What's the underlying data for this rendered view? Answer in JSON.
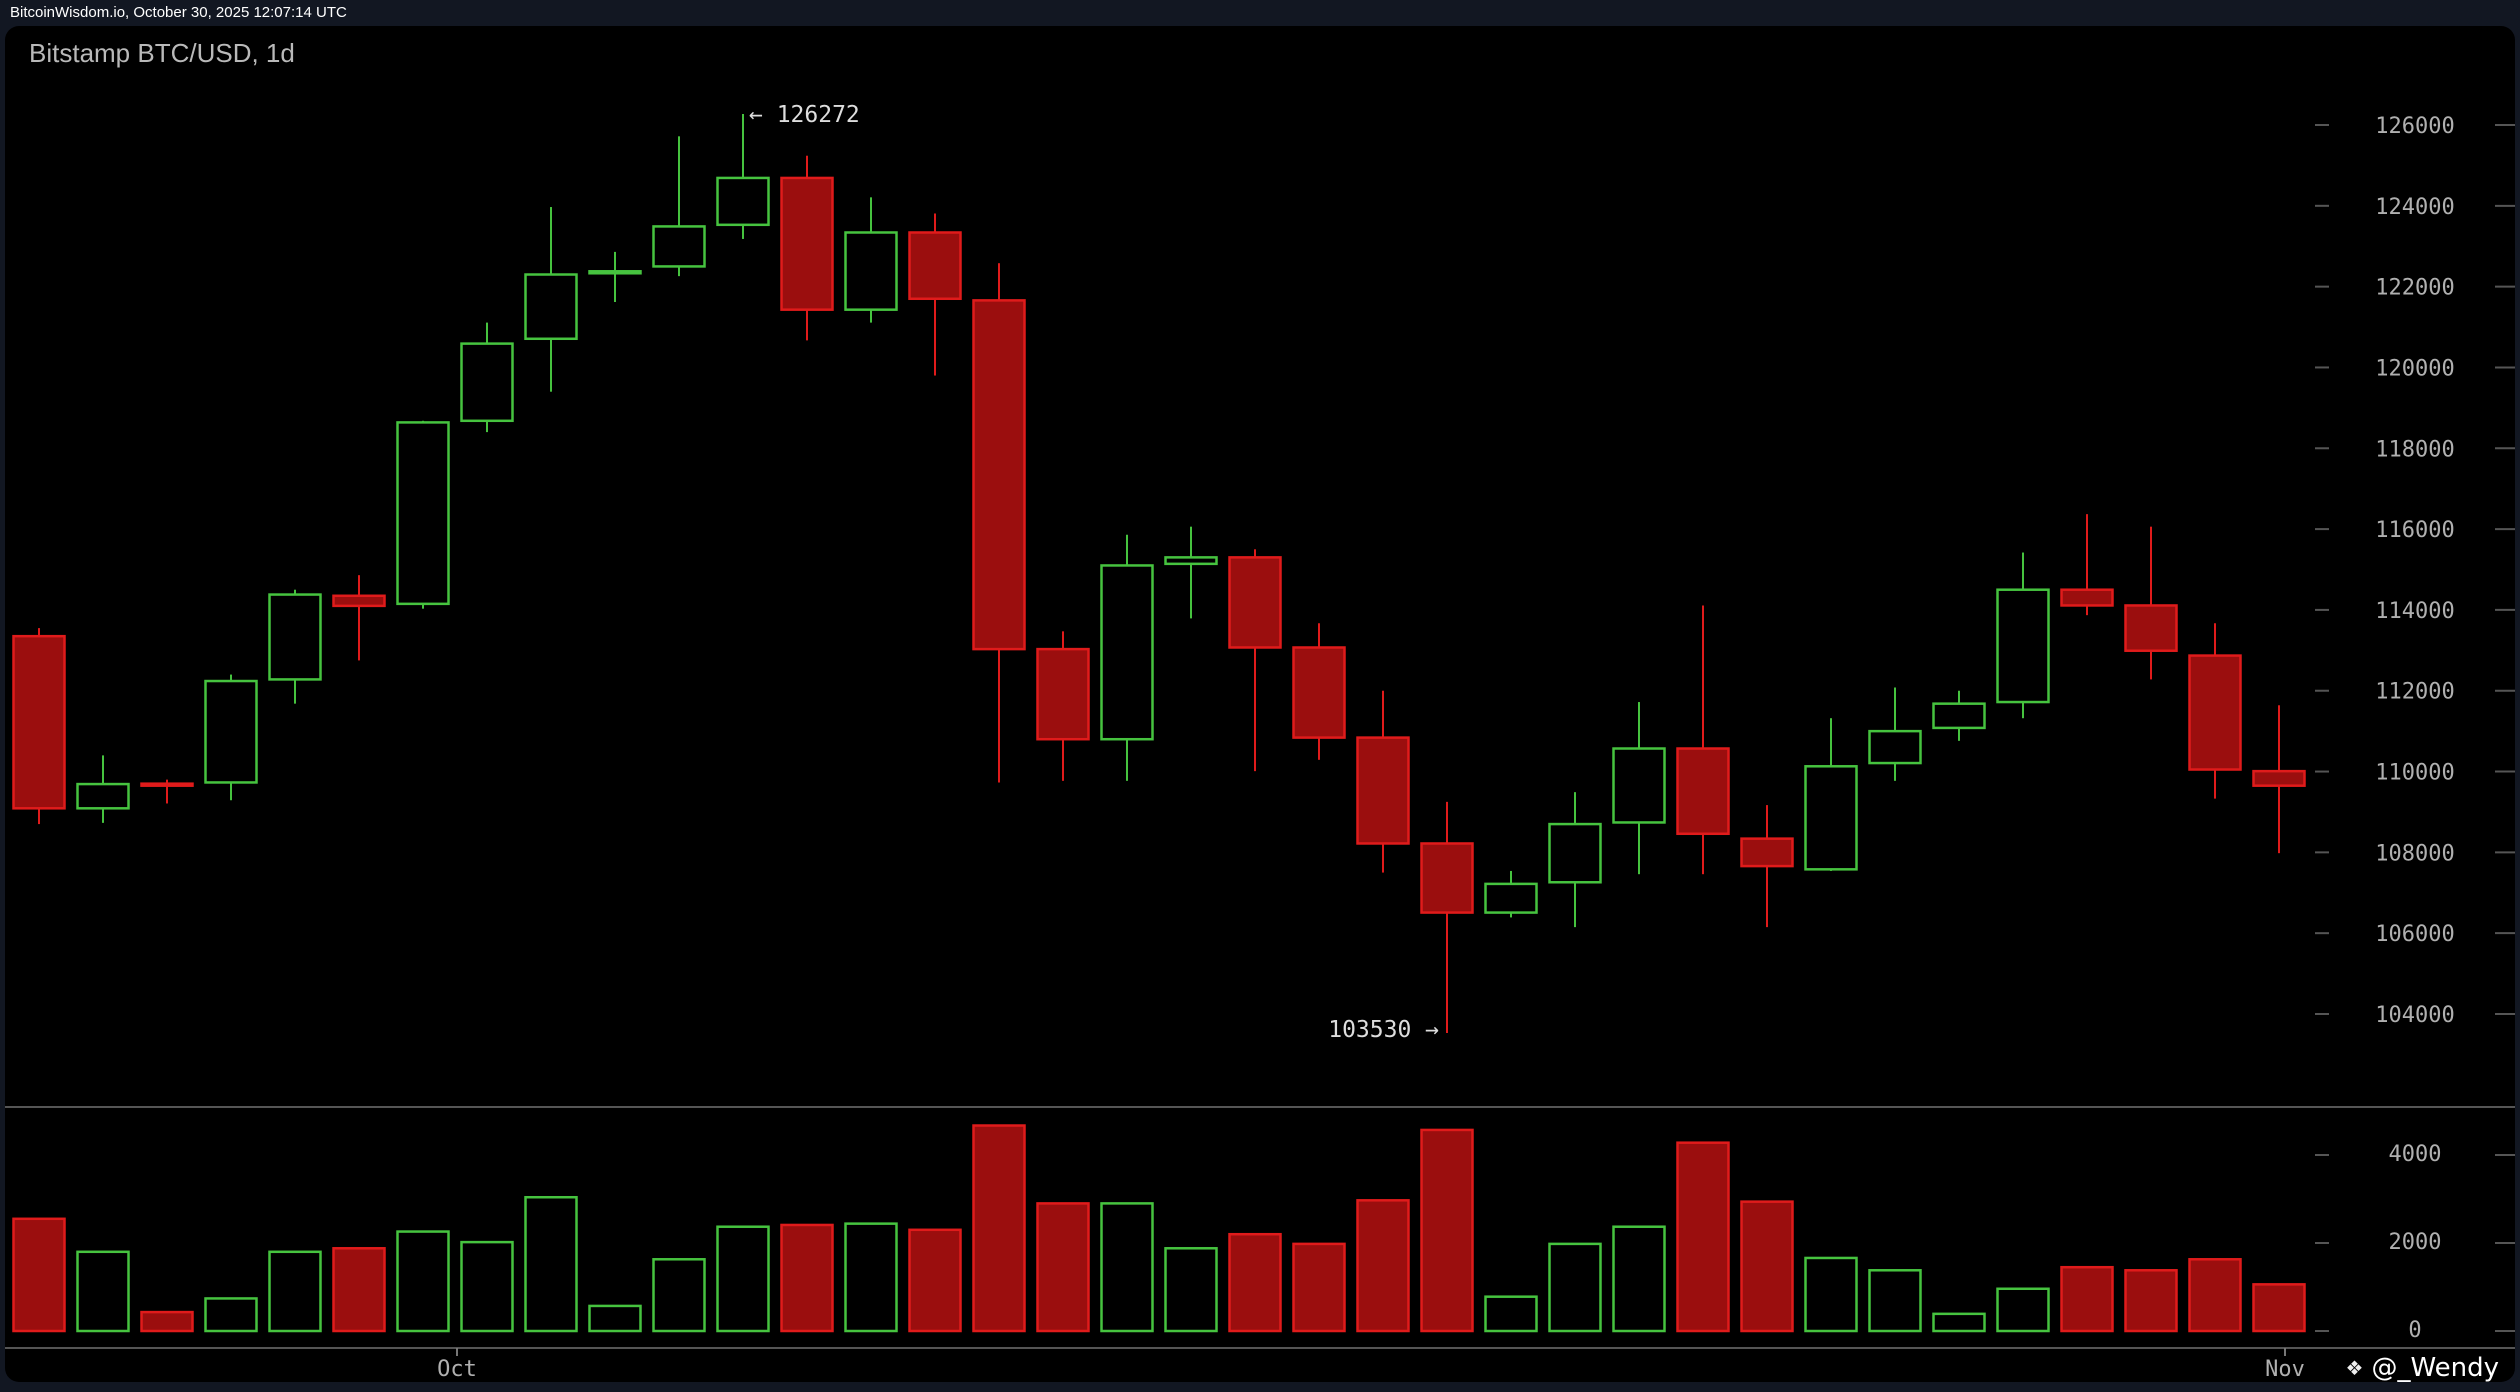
{
  "header": {
    "source_timestamp": "BitcoinWisdom.io, October 30, 2025 12:07:14 UTC"
  },
  "watermark": {
    "text": "@_Wendy",
    "icon": "binance-diamond-icon"
  },
  "colors": {
    "up": "#46c33f",
    "down": "#9b0e0e",
    "down_border": "#e01b1b",
    "background": "#000000",
    "axis_text": "#b0b0b0"
  },
  "chart_data": [
    {
      "type": "candlestick",
      "title": "Bitstamp BTC/USD, 1d",
      "ylim": [
        102500,
        127500
      ],
      "yticks": [
        104000,
        106000,
        108000,
        110000,
        112000,
        114000,
        116000,
        118000,
        120000,
        122000,
        124000,
        126000
      ],
      "xticks": [
        {
          "label": "Oct",
          "index": 7
        },
        {
          "label": "Nov",
          "index": 37
        }
      ],
      "annotations": [
        {
          "text": "← 126272",
          "index": 11,
          "value": 126272
        },
        {
          "text": "103530 →",
          "index": 22,
          "value": 103530
        }
      ],
      "ohlc": [
        [
          113350,
          113550,
          108700,
          109090
        ],
        [
          109090,
          110400,
          108730,
          109690
        ],
        [
          109700,
          109800,
          109210,
          109650
        ],
        [
          109730,
          112400,
          109290,
          112240
        ],
        [
          112280,
          114500,
          111680,
          114380
        ],
        [
          114350,
          114860,
          112750,
          114100
        ],
        [
          114150,
          118680,
          114030,
          118640
        ],
        [
          118680,
          121110,
          118400,
          120590
        ],
        [
          120710,
          123970,
          119400,
          122300
        ],
        [
          122340,
          122860,
          121620,
          122380
        ],
        [
          122500,
          125720,
          122260,
          123490
        ],
        [
          123530,
          126272,
          123180,
          124690
        ],
        [
          124690,
          125240,
          120670,
          121430
        ],
        [
          121430,
          124210,
          121110,
          123340
        ],
        [
          123340,
          123810,
          119800,
          121700
        ],
        [
          121660,
          122580,
          109730,
          113030
        ],
        [
          113030,
          113470,
          109770,
          110800
        ],
        [
          110800,
          115860,
          109770,
          115100
        ],
        [
          115140,
          116060,
          113790,
          115300
        ],
        [
          115300,
          115500,
          110010,
          113070
        ],
        [
          113070,
          113670,
          110290,
          110840
        ],
        [
          110840,
          112000,
          107500,
          108220
        ],
        [
          108220,
          109250,
          103530,
          106510
        ],
        [
          106510,
          107540,
          106390,
          107220
        ],
        [
          107260,
          109490,
          106150,
          108700
        ],
        [
          108740,
          111720,
          107460,
          110570
        ],
        [
          110570,
          114110,
          107460,
          108460
        ],
        [
          108340,
          109170,
          106150,
          107660
        ],
        [
          107580,
          111320,
          107540,
          110130
        ],
        [
          110210,
          112080,
          109770,
          111000
        ],
        [
          111080,
          112000,
          110760,
          111680
        ],
        [
          111720,
          115420,
          111320,
          114500
        ],
        [
          114500,
          116370,
          113870,
          114110
        ],
        [
          114110,
          116060,
          112280,
          112990
        ],
        [
          112870,
          113670,
          109330,
          110050
        ],
        [
          110010,
          111640,
          107980,
          109650
        ]
      ]
    },
    {
      "type": "bar",
      "ylabel": "",
      "ylim": [
        0,
        5000
      ],
      "yticks": [
        0,
        2000,
        4000
      ],
      "values": [
        2550,
        1800,
        430,
        740,
        1800,
        1880,
        2260,
        2020,
        3040,
        570,
        1630,
        2370,
        2410,
        2440,
        2300,
        4670,
        2900,
        2900,
        1880,
        2200,
        1980,
        2970,
        4570,
        780,
        1980,
        2370,
        4280,
        2940,
        1660,
        1380,
        390,
        960,
        1450,
        1380,
        1630,
        1060
      ]
    }
  ]
}
